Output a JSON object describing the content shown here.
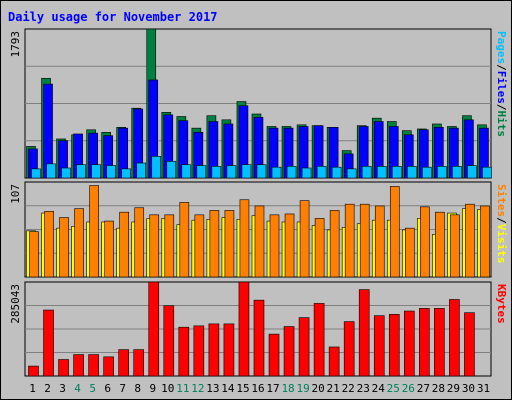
{
  "chart_data": {
    "type": "bar",
    "title": "Daily usage for November 2017",
    "categories": [
      "1",
      "2",
      "3",
      "4",
      "5",
      "6",
      "7",
      "8",
      "9",
      "10",
      "11",
      "12",
      "13",
      "14",
      "15",
      "16",
      "17",
      "18",
      "19",
      "20",
      "21",
      "22",
      "23",
      "24",
      "25",
      "26",
      "27",
      "28",
      "29",
      "30",
      "31"
    ],
    "weekend_days": [
      "4",
      "5",
      "11",
      "12",
      "18",
      "19",
      "25",
      "26"
    ],
    "panels": [
      {
        "id": "hits_files_pages",
        "ymax_label": "1793",
        "ymax": 1793,
        "legend": [
          {
            "text": "Pages",
            "color": "#00c0ff"
          },
          {
            "text": "/",
            "color": "#000000"
          },
          {
            "text": "Files",
            "color": "#0000ff"
          },
          {
            "text": "/",
            "color": "#000000"
          },
          {
            "text": "Hits",
            "color": "#008040"
          }
        ],
        "series": [
          {
            "name": "Hits",
            "color": "#008040",
            "values": [
              380,
              1200,
              470,
              520,
              580,
              550,
              610,
              840,
              1793,
              790,
              740,
              600,
              750,
              700,
              920,
              770,
              620,
              620,
              640,
              630,
              610,
              330,
              630,
              720,
              680,
              570,
              590,
              650,
              620,
              750,
              640
            ]
          },
          {
            "name": "Files",
            "color": "#0000ff",
            "values": [
              350,
              1130,
              450,
              530,
              540,
              510,
              600,
              830,
              1180,
              760,
              690,
              550,
              680,
              650,
              870,
              730,
              600,
              600,
              620,
              630,
              610,
              290,
              620,
              680,
              620,
              520,
              580,
              610,
              600,
              700,
              600
            ]
          },
          {
            "name": "Pages",
            "color": "#00c0ff",
            "values": [
              110,
              170,
              120,
              160,
              160,
              150,
              110,
              180,
              260,
              200,
              160,
              150,
              140,
              150,
              160,
              160,
              130,
              140,
              120,
              140,
              130,
              110,
              140,
              140,
              140,
              140,
              130,
              140,
              140,
              150,
              130
            ]
          }
        ]
      },
      {
        "id": "visits_sites",
        "ymax_label": "107",
        "ymax": 107,
        "legend": [
          {
            "text": "Sites",
            "color": "#ff8000"
          },
          {
            "text": "/",
            "color": "#000000"
          },
          {
            "text": "Visits",
            "color": "#ffff00"
          }
        ],
        "series": [
          {
            "name": "Visits",
            "color": "#ffff00",
            "values": [
              52,
              72,
              55,
              57,
              62,
              62,
              55,
              62,
              66,
              66,
              59,
              64,
              65,
              67,
              65,
              69,
              63,
              62,
              62,
              58,
              53,
              56,
              60,
              64,
              64,
              53,
              66,
              48,
              72,
              77,
              76
            ]
          },
          {
            "name": "Sites",
            "color": "#ff8000",
            "values": [
              51,
              74,
              67,
              77,
              103,
              63,
              73,
              78,
              70,
              70,
              84,
              70,
              75,
              75,
              87,
              80,
              70,
              71,
              86,
              66,
              75,
              82,
              82,
              80,
              102,
              55,
              79,
              73,
              70,
              82,
              80
            ]
          }
        ]
      },
      {
        "id": "kbytes",
        "ymax_label": "285043",
        "ymax": 285043,
        "legend": [
          {
            "text": "KBytes",
            "color": "#ff0000"
          }
        ],
        "series": [
          {
            "name": "KBytes",
            "color": "#ff0000",
            "values": [
              30000,
              200000,
              50000,
              65000,
              65000,
              58000,
              80000,
              80000,
              285043,
              213000,
              148000,
              152000,
              158000,
              158000,
              285043,
              230000,
              127000,
              150000,
              177000,
              220000,
              88000,
              165000,
              262000,
              183000,
              187000,
              197000,
              205000,
              205000,
              232000,
              192000,
              0
            ]
          }
        ]
      }
    ]
  }
}
